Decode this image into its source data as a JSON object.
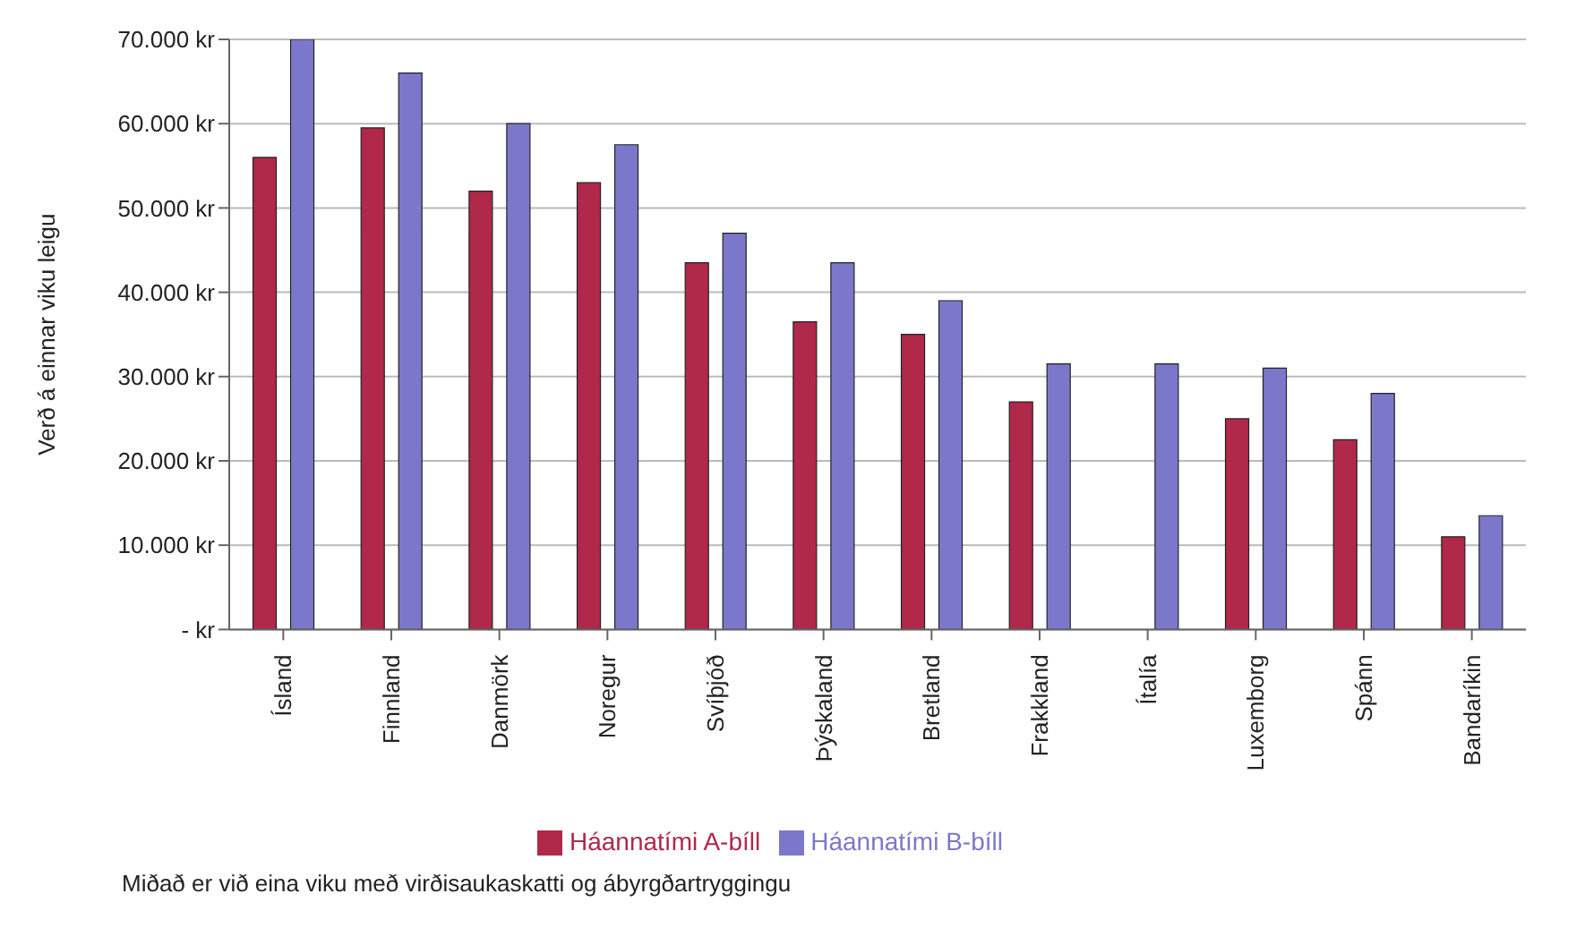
{
  "chart_data": {
    "type": "bar",
    "ylabel": "Verð á einnar viku leigu",
    "categories": [
      "Ísland",
      "Finnland",
      "Danmörk",
      "Noregur",
      "Svíþjóð",
      "Þýskaland",
      "Bretland",
      "Frakkland",
      "Ítalía",
      "Luxemborg",
      "Spánn",
      "Bandaríkin"
    ],
    "series": [
      {
        "name": "Háannatími A-bíll",
        "color": "#b0284a",
        "values": [
          56000,
          59500,
          52000,
          53000,
          43500,
          36500,
          35000,
          27000,
          0,
          25000,
          22500,
          11000
        ]
      },
      {
        "name": "Háannatími B-bíll",
        "color": "#7b78cc",
        "values": [
          70000,
          66000,
          60000,
          57500,
          47000,
          43500,
          39000,
          31500,
          31500,
          31000,
          28000,
          13500
        ]
      }
    ],
    "ylim": [
      0,
      70000
    ],
    "yticks": [
      {
        "value": 0,
        "label": "- kr"
      },
      {
        "value": 10000,
        "label": "10.000 kr"
      },
      {
        "value": 20000,
        "label": "20.000 kr"
      },
      {
        "value": 30000,
        "label": "30.000 kr"
      },
      {
        "value": 40000,
        "label": "40.000 kr"
      },
      {
        "value": 50000,
        "label": "50.000 kr"
      },
      {
        "value": 60000,
        "label": "60.000 kr"
      },
      {
        "value": 70000,
        "label": "70.000 kr"
      }
    ],
    "grid": "y",
    "legend": "bottom",
    "annotations": [
      "Miðað er við eina viku með virðisaukaskatti og ábyrgðartryggingu"
    ]
  }
}
